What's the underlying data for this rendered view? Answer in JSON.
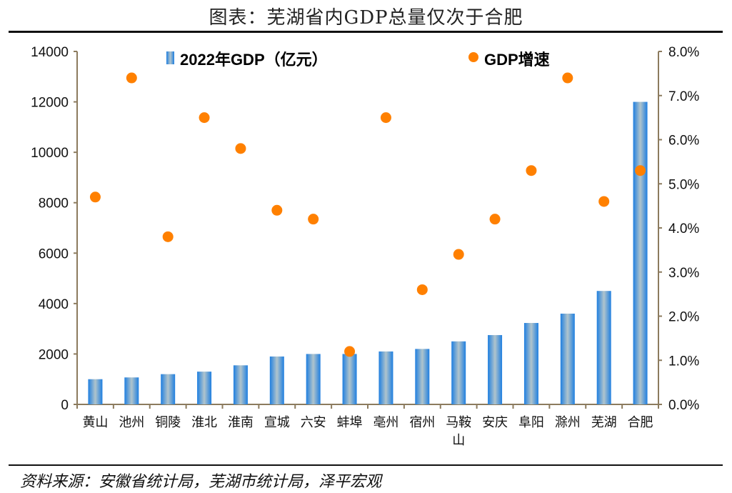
{
  "title": "图表：芜湖省内GDP总量仅次于合肥",
  "source": "资料来源：安徽省统计局，芜湖市统计局，泽平宏观",
  "colors": {
    "bar": "#1f7fe0",
    "bar_center": "#b0c4cc",
    "dot": "#ff8000",
    "axis": "#8c7b5e"
  },
  "chart_data": {
    "type": "bar+scatter",
    "title": "图表：芜湖省内GDP总量仅次于合肥",
    "categories": [
      "黄山",
      "池州",
      "铜陵",
      "淮北",
      "淮南",
      "宣城",
      "六安",
      "蚌埠",
      "亳州",
      "宿州",
      "马鞍山",
      "安庆",
      "阜阳",
      "滁州",
      "芜湖",
      "合肥"
    ],
    "series": [
      {
        "name": "2022年GDP（亿元）",
        "type": "bar",
        "axis": "left",
        "values": [
          1000,
          1070,
          1200,
          1300,
          1550,
          1900,
          2000,
          2000,
          2100,
          2200,
          2500,
          2750,
          3230,
          3600,
          4500,
          12000
        ]
      },
      {
        "name": "GDP增速",
        "type": "scatter",
        "axis": "right",
        "values": [
          4.7,
          7.4,
          3.8,
          6.5,
          5.8,
          4.4,
          4.2,
          1.2,
          6.5,
          2.6,
          3.4,
          4.2,
          5.3,
          7.4,
          4.6,
          5.3
        ]
      }
    ],
    "left_axis": {
      "range": [
        0,
        14000
      ],
      "ticks": [
        "0",
        "2000",
        "4000",
        "6000",
        "8000",
        "10000",
        "12000",
        "14000"
      ]
    },
    "right_axis": {
      "range": [
        0,
        8
      ],
      "unit": "%",
      "ticks": [
        "0.0%",
        "1.0%",
        "2.0%",
        "3.0%",
        "4.0%",
        "5.0%",
        "6.0%",
        "7.0%",
        "8.0%"
      ]
    },
    "grid": false,
    "legend_placement": "top"
  }
}
